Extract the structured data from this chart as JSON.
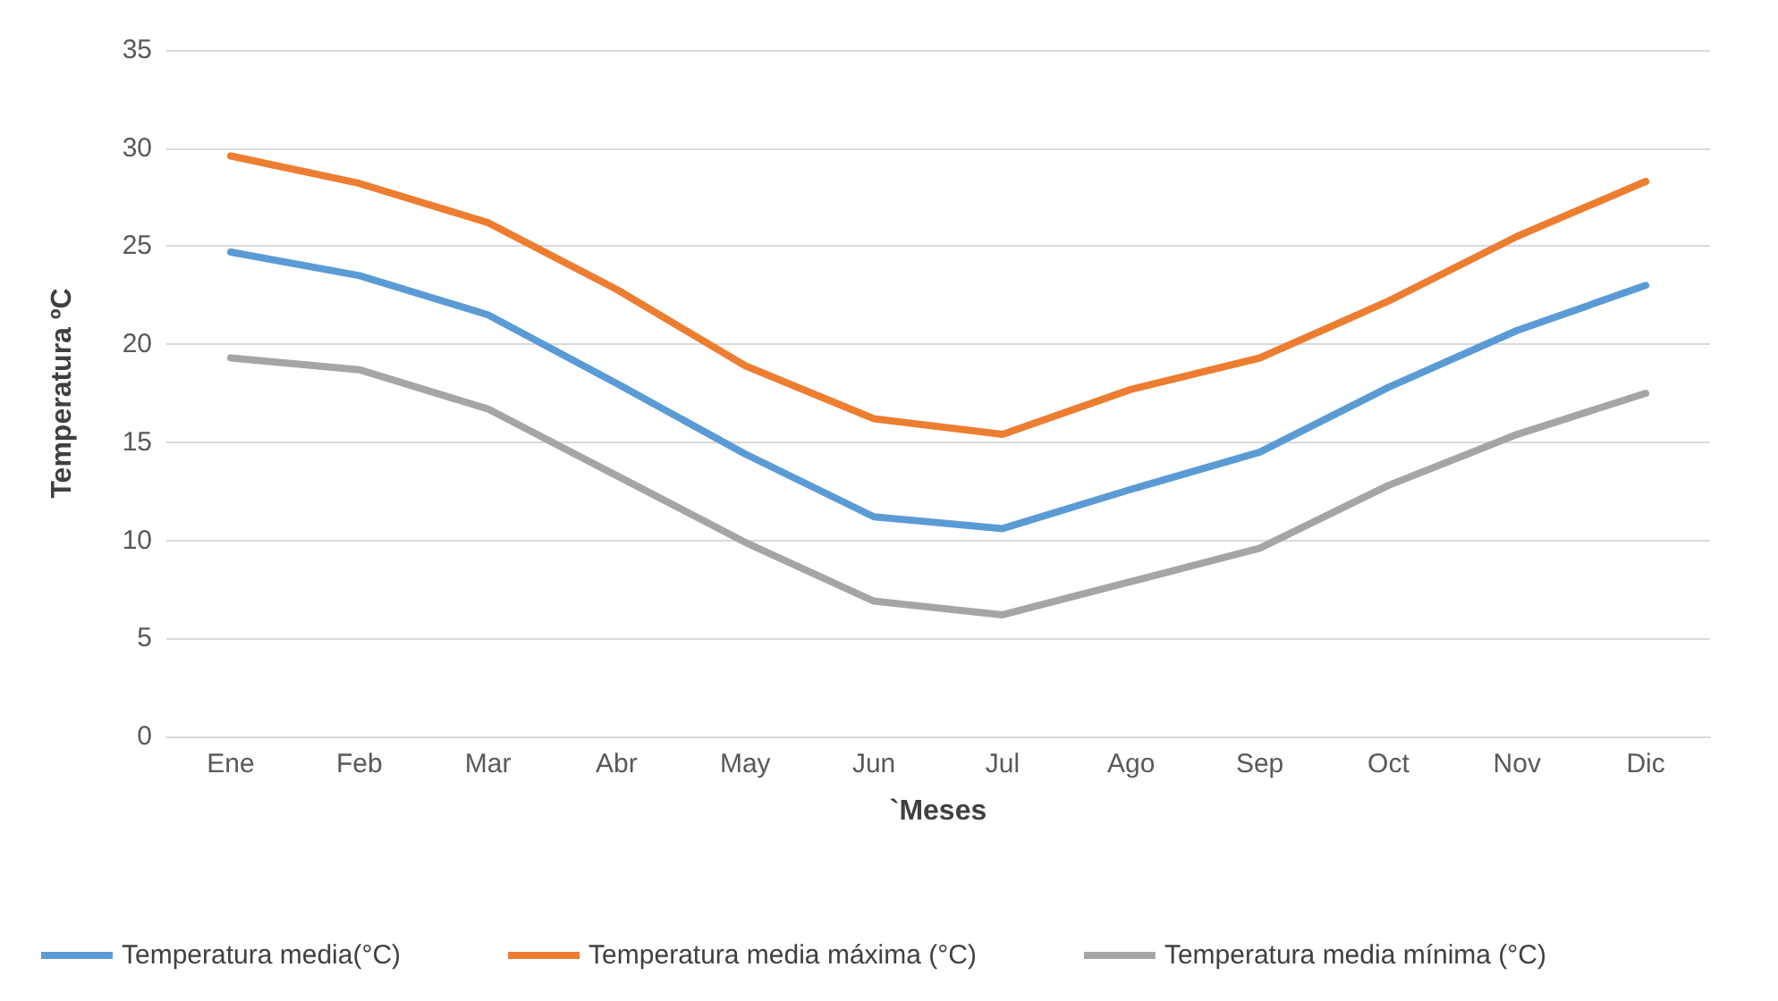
{
  "chart_data": {
    "type": "line",
    "xlabel": "`Meses",
    "ylabel": "Temperatura ºC",
    "categories": [
      "Ene",
      "Feb",
      "Mar",
      "Abr",
      "May",
      "Jun",
      "Jul",
      "Ago",
      "Sep",
      "Oct",
      "Nov",
      "Dic"
    ],
    "series": [
      {
        "name": "Temperatura media(°C)",
        "color": "#5b9bd5",
        "values": [
          24.7,
          23.5,
          21.5,
          18.0,
          14.4,
          11.2,
          10.6,
          12.6,
          14.5,
          17.8,
          20.7,
          23.0
        ]
      },
      {
        "name": "Temperatura media máxima (°C)",
        "color": "#ed7d31",
        "values": [
          29.6,
          28.2,
          26.2,
          22.8,
          18.9,
          16.2,
          15.4,
          17.7,
          19.3,
          22.2,
          25.5,
          28.3
        ]
      },
      {
        "name": "Temperatura media mínima (°C)",
        "color": "#a5a5a5",
        "values": [
          19.3,
          18.7,
          16.7,
          13.3,
          9.9,
          6.9,
          6.2,
          7.9,
          9.6,
          12.8,
          15.4,
          17.5
        ]
      }
    ],
    "ylim": [
      0,
      35
    ],
    "yticks": [
      0,
      5,
      10,
      15,
      20,
      25,
      30,
      35
    ],
    "grid": "y",
    "legend": "bottom",
    "marker": "none",
    "line_style": "solid"
  }
}
